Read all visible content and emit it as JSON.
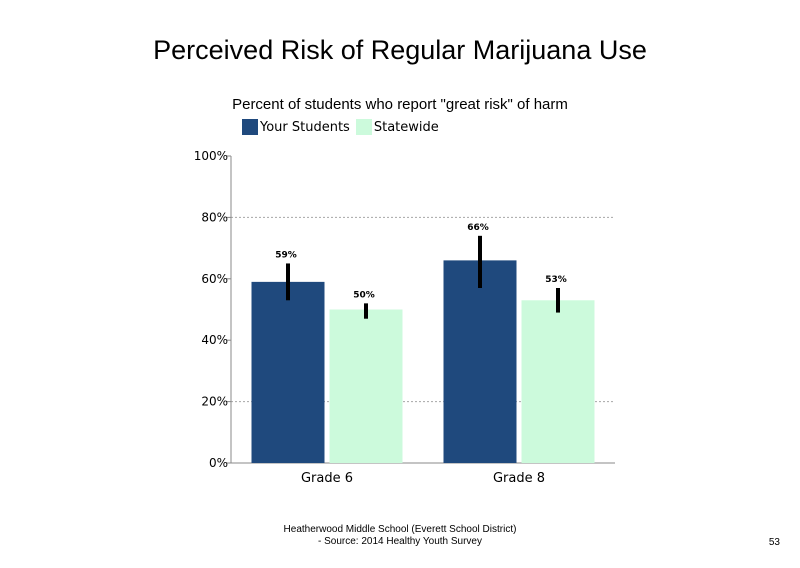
{
  "slide": {
    "title": "Perceived Risk of Regular Marijuana Use",
    "subtitle": "Percent of students who report \"great risk\" of harm",
    "footer_line1": "Heatherwood Middle School (Everett School District)",
    "footer_line2": "- Source: 2014 Healthy  Youth Survey",
    "page_number": "53"
  },
  "chart_data": {
    "type": "bar",
    "title": "Perceived Risk of Regular Marijuana Use",
    "subtitle": "Percent of students who report \"great risk\" of harm",
    "categories": [
      "Grade 6",
      "Grade 8"
    ],
    "series": [
      {
        "name": "Your Students",
        "color": "#1f497d",
        "values": [
          59,
          66
        ],
        "labels": [
          "59%",
          "66%"
        ],
        "error_low": [
          53,
          57
        ],
        "error_high": [
          65,
          74
        ]
      },
      {
        "name": "Statewide",
        "color": "#ccfadc",
        "values": [
          50,
          53
        ],
        "labels": [
          "50%",
          "53%"
        ],
        "error_low": [
          47,
          49
        ],
        "error_high": [
          52,
          57
        ]
      }
    ],
    "ylim": [
      0,
      100
    ],
    "yticks": [
      0,
      20,
      40,
      60,
      80,
      100
    ],
    "ytick_labels": [
      "0%",
      "20%",
      "40%",
      "60%",
      "80%",
      "100%"
    ],
    "grid": "dotted horizontal at 20% and 80%",
    "legend_position": "top-left"
  }
}
